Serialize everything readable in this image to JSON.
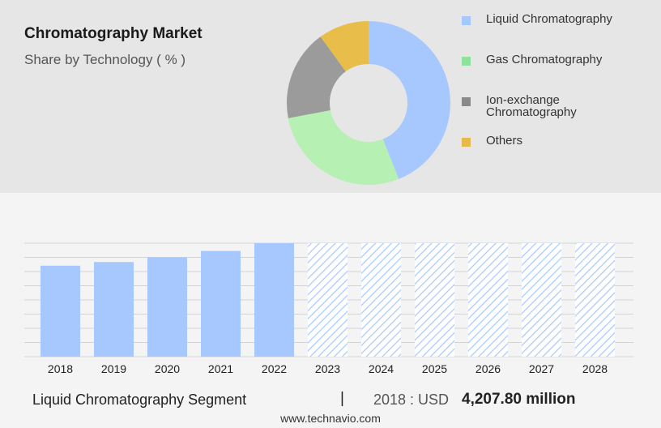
{
  "header": {
    "title": "Chromatography Market",
    "subtitle": "Share by Technology ( % )"
  },
  "chart_data": [
    {
      "type": "pie",
      "style": "donut",
      "labels": [
        "Liquid Chromatography",
        "Gas Chromatography",
        "Ion-exchange Chromatography",
        "Others"
      ],
      "values": [
        44,
        28,
        18,
        10
      ],
      "colors": [
        "#a6c8ff",
        "#b6f0b3",
        "#9b9b9b",
        "#e8bd4a"
      ],
      "legend_colors": [
        "#a6c8ff",
        "#8fe29a",
        "#8a8a8a",
        "#e3bb4a"
      ],
      "legend_position": "right"
    },
    {
      "type": "bar",
      "categories": [
        "2018",
        "2019",
        "2020",
        "2021",
        "2022",
        "2023",
        "2024",
        "2025",
        "2026",
        "2027",
        "2028"
      ],
      "values": [
        4207.8,
        4380,
        4600,
        4890,
        5250,
        5250,
        5250,
        5250,
        5250,
        5250,
        5250
      ],
      "forecast_from": "2023",
      "colors": {
        "actual": "#a6c8ff",
        "forecast": "#a6c8ff"
      },
      "ylim": [
        0,
        5250
      ],
      "grid": true
    }
  ],
  "footer": {
    "segment": "Liquid Chromatography Segment",
    "divider": "|",
    "year_label": "2018 : USD",
    "value": "4,207.80 million",
    "url": "www.technavio.com"
  }
}
